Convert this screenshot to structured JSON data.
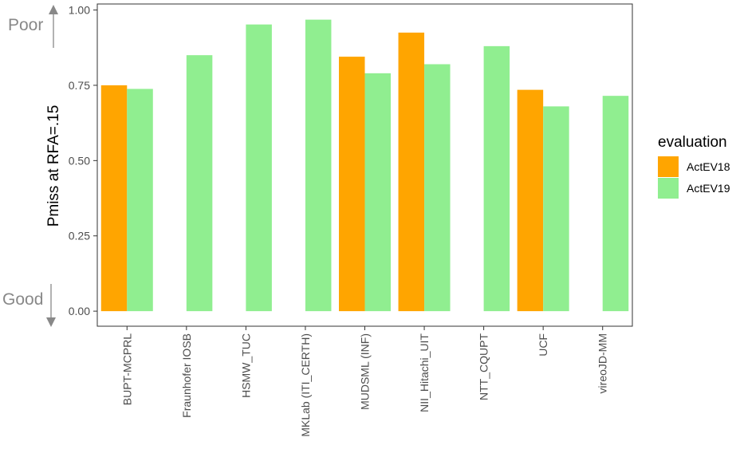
{
  "chart_data": {
    "type": "bar",
    "categories": [
      "BUPT-MCPRL",
      "Fraunhofer IOSB",
      "HSMW_TUC",
      "MKLab (ITI_CERTH)",
      "MUDSML (INF)",
      "NII_Hitachi_UIT",
      "NTT_CQUPT",
      "UCF",
      "vireoJD-MM"
    ],
    "series": [
      {
        "name": "ActEV18",
        "color": "#FFA500",
        "values": [
          0.75,
          null,
          null,
          null,
          0.845,
          0.925,
          null,
          0.735,
          null
        ]
      },
      {
        "name": "ActEV19",
        "color": "#90EE90",
        "values": [
          0.738,
          0.85,
          0.952,
          0.968,
          0.79,
          0.82,
          0.88,
          0.68,
          0.715
        ]
      }
    ],
    "title": "",
    "xlabel": "",
    "ylabel": "Pmiss at RFA=.15",
    "ylim": [
      -0.05,
      1.02
    ],
    "yticks": [
      0.0,
      0.25,
      0.5,
      0.75,
      1.0
    ],
    "ytick_labels": [
      "0.00",
      "0.25",
      "0.50",
      "0.75",
      "1.00"
    ],
    "grid": false,
    "legend": {
      "title": "evaluation",
      "position": "right"
    },
    "annotations": {
      "top": "Poor",
      "bottom": "Good"
    },
    "annotation_color": "#888888"
  }
}
